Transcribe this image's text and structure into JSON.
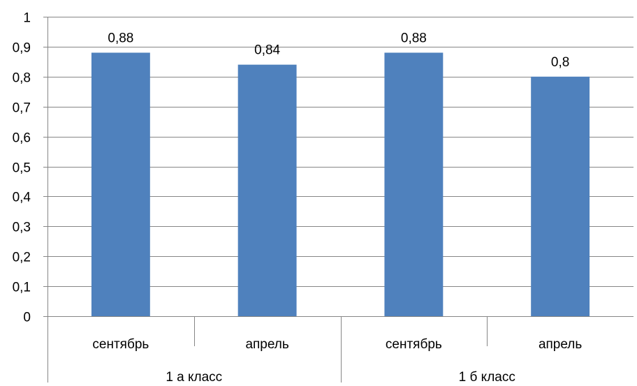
{
  "chart_data": {
    "type": "bar",
    "categories": [
      "сентябрь",
      "апрель",
      "сентябрь",
      "апрель"
    ],
    "groups": [
      {
        "label": "1 а класс",
        "categories": [
          "сентябрь",
          "апрель"
        ]
      },
      {
        "label": "1 б класс",
        "categories": [
          "сентябрь",
          "апрель"
        ]
      }
    ],
    "values": [
      0.88,
      0.84,
      0.88,
      0.8
    ],
    "value_labels": [
      "0,88",
      "0,84",
      "0,88",
      "0,8"
    ],
    "yticks": [
      "0",
      "0,1",
      "0,2",
      "0,3",
      "0,4",
      "0,5",
      "0,6",
      "0,7",
      "0,8",
      "0,9",
      "1"
    ],
    "ylim": [
      0,
      1
    ],
    "grid": true,
    "bar_color": "#4F81BD"
  }
}
